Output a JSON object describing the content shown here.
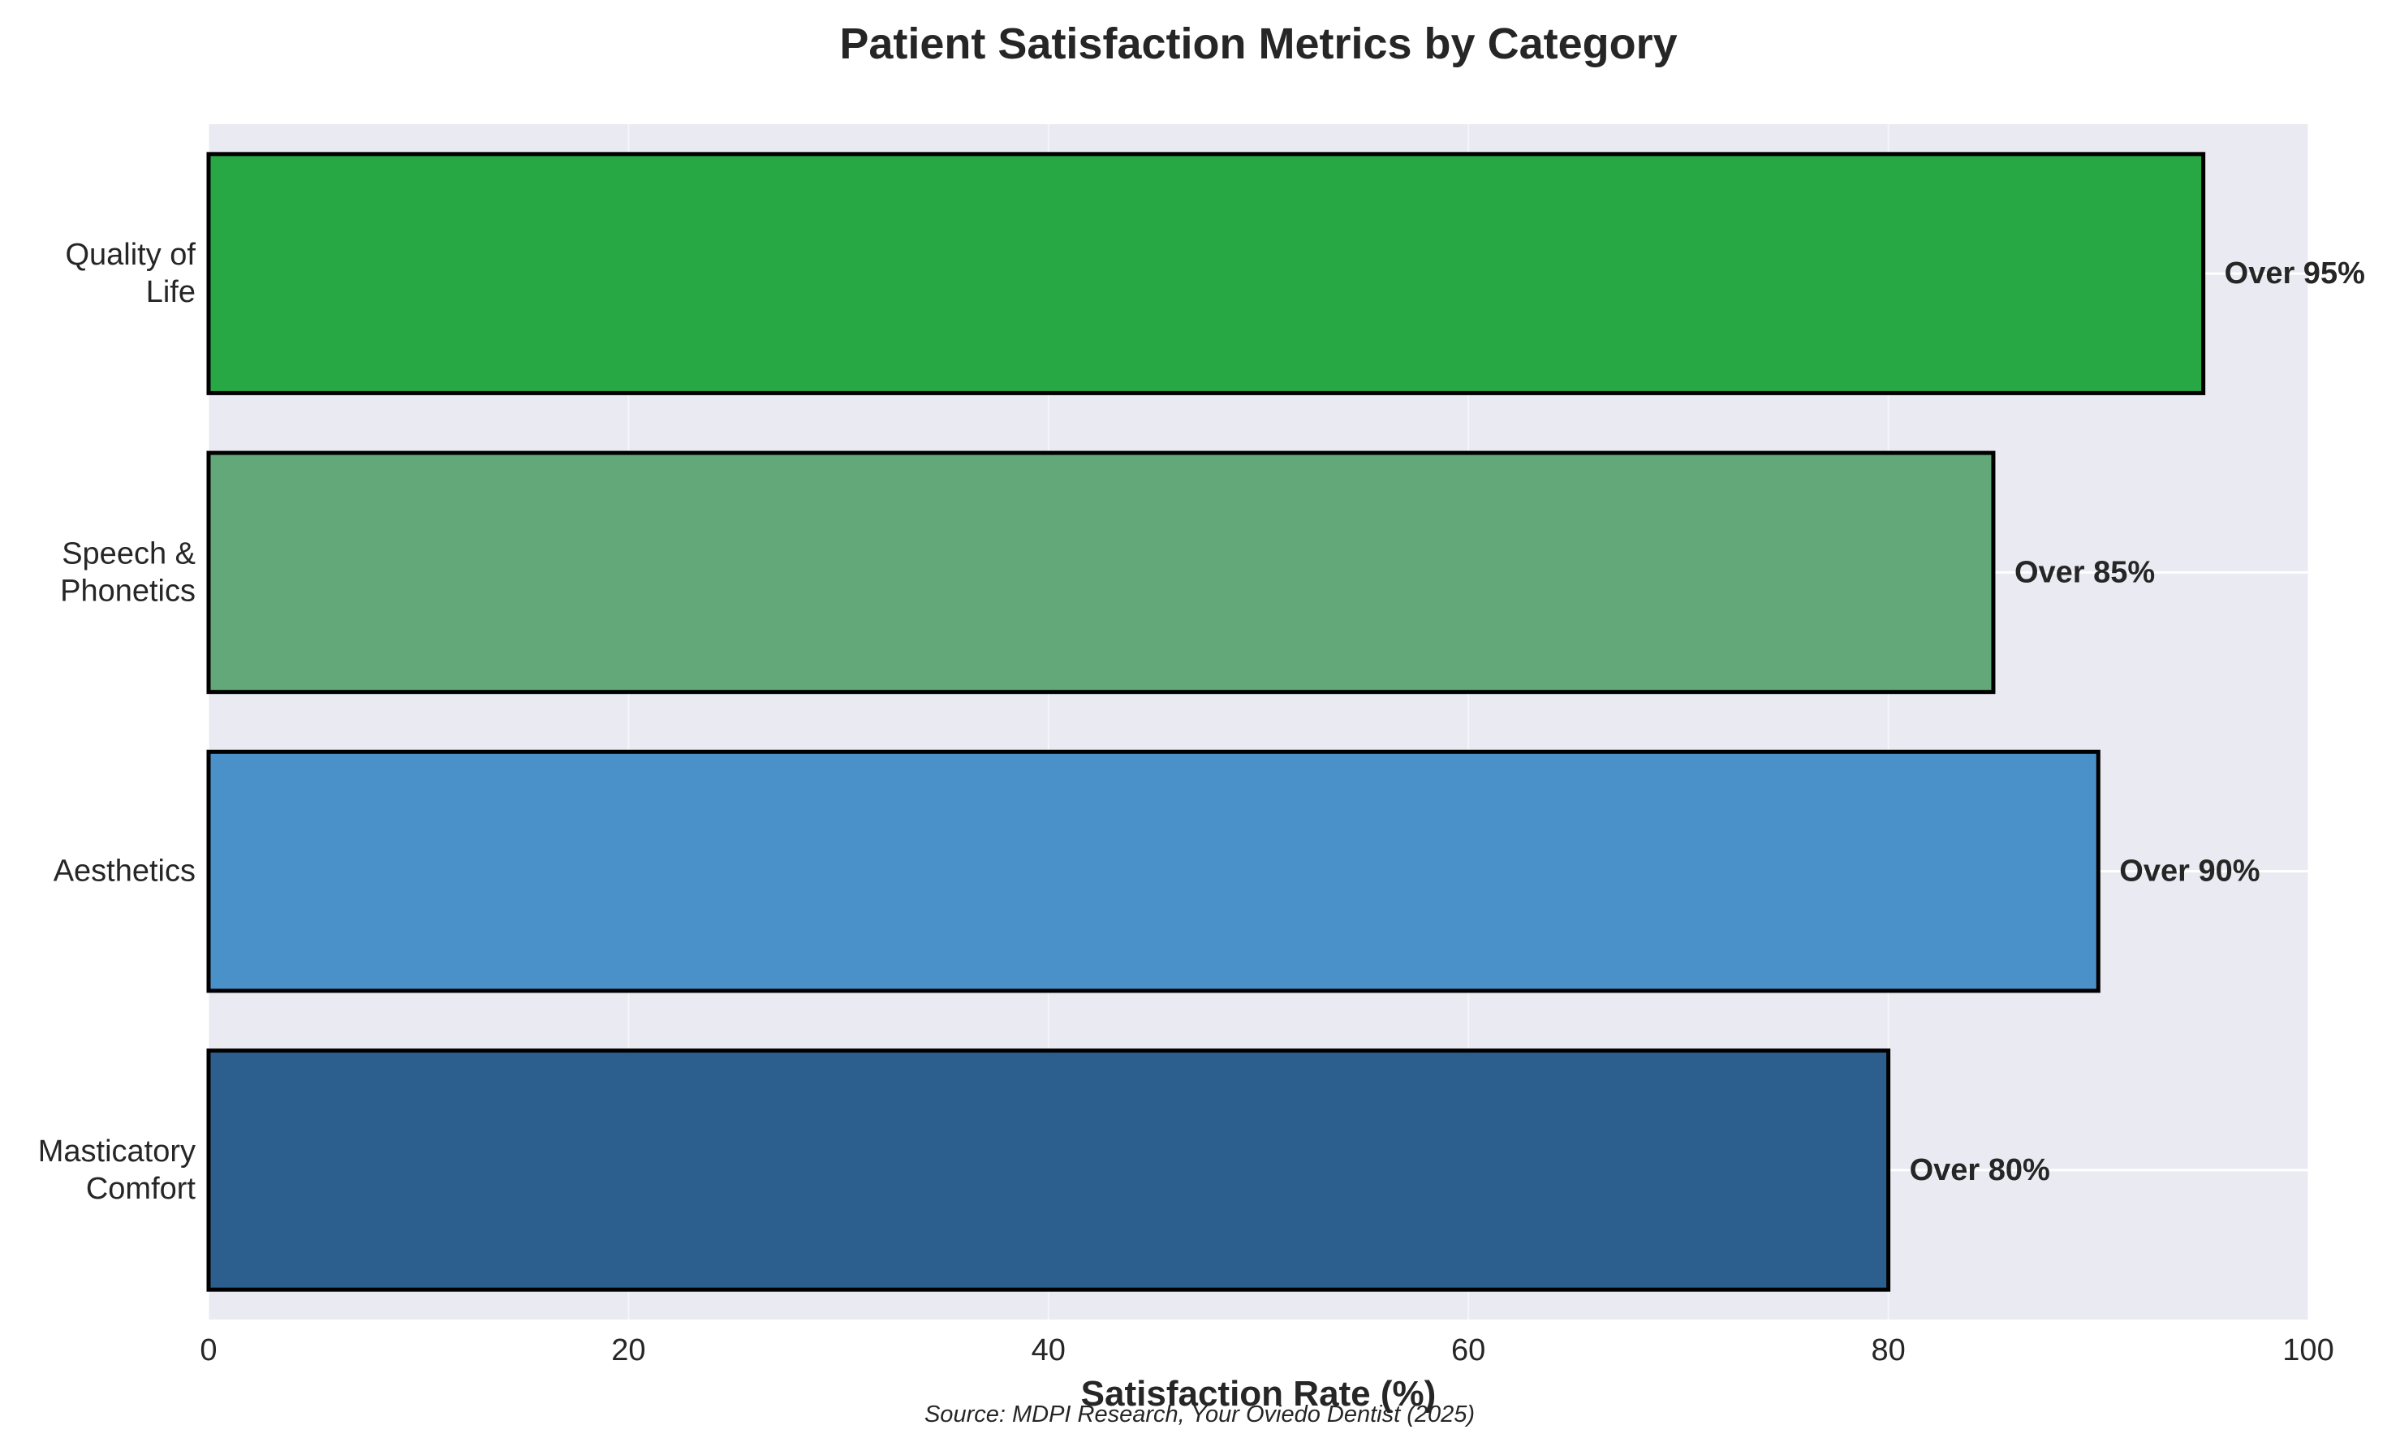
{
  "chart_data": {
    "type": "bar",
    "orientation": "horizontal",
    "title": "Patient Satisfaction Metrics by Category",
    "xlabel": "Satisfaction Rate (%)",
    "ylabel": "",
    "xlim": [
      0,
      100
    ],
    "xticks": [
      "0",
      "20",
      "40",
      "60",
      "80",
      "100"
    ],
    "grid": true,
    "background_color": "#EAEAF2",
    "bars": [
      {
        "category": [
          "Masticatory",
          "Comfort"
        ],
        "value": 80,
        "label": "Over 80%",
        "color": "#2C5F8D"
      },
      {
        "category": [
          "Aesthetics"
        ],
        "value": 90,
        "label": "Over 90%",
        "color": "#4A90C9"
      },
      {
        "category": [
          "Speech &",
          "Phonetics"
        ],
        "value": 85,
        "label": "Over 85%",
        "color": "#62A878"
      },
      {
        "category": [
          "Quality of",
          "Life"
        ],
        "value": 95,
        "label": "Over 95%",
        "color": "#28A745"
      }
    ],
    "source": "Source: MDPI Research, Your Oviedo Dentist (2025)"
  }
}
